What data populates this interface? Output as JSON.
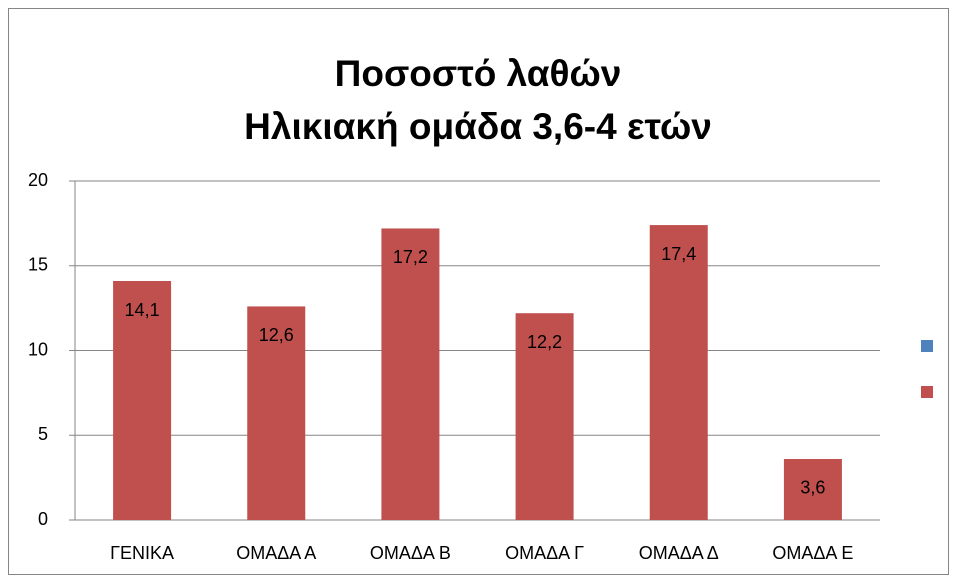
{
  "chart_data": {
    "type": "bar",
    "title": "Ποσοστό λαθών",
    "subtitle": "Ηλικιακή ομάδα 3,6-4 ετών",
    "categories": [
      "ΓΕΝΙΚΑ",
      "ΟΜΑΔΑ Α",
      "ΟΜΑΔΑ Β",
      "ΟΜΑΔΑ Γ",
      "ΟΜΑΔΑ Δ",
      "ΟΜΑΔΑ Ε"
    ],
    "series": [
      {
        "color": "#4f81bd",
        "values": [
          null,
          null,
          null,
          null,
          null,
          null
        ]
      },
      {
        "color": "#c0504d",
        "values": [
          14.1,
          12.6,
          17.2,
          12.2,
          17.4,
          3.6
        ],
        "value_labels": [
          "14,1",
          "12,6",
          "17,2",
          "12,2",
          "17,4",
          "3,6"
        ]
      }
    ],
    "ylim": [
      0,
      20
    ],
    "yticks": [
      0,
      5,
      10,
      15,
      20
    ],
    "grid": true,
    "legend": "right"
  }
}
